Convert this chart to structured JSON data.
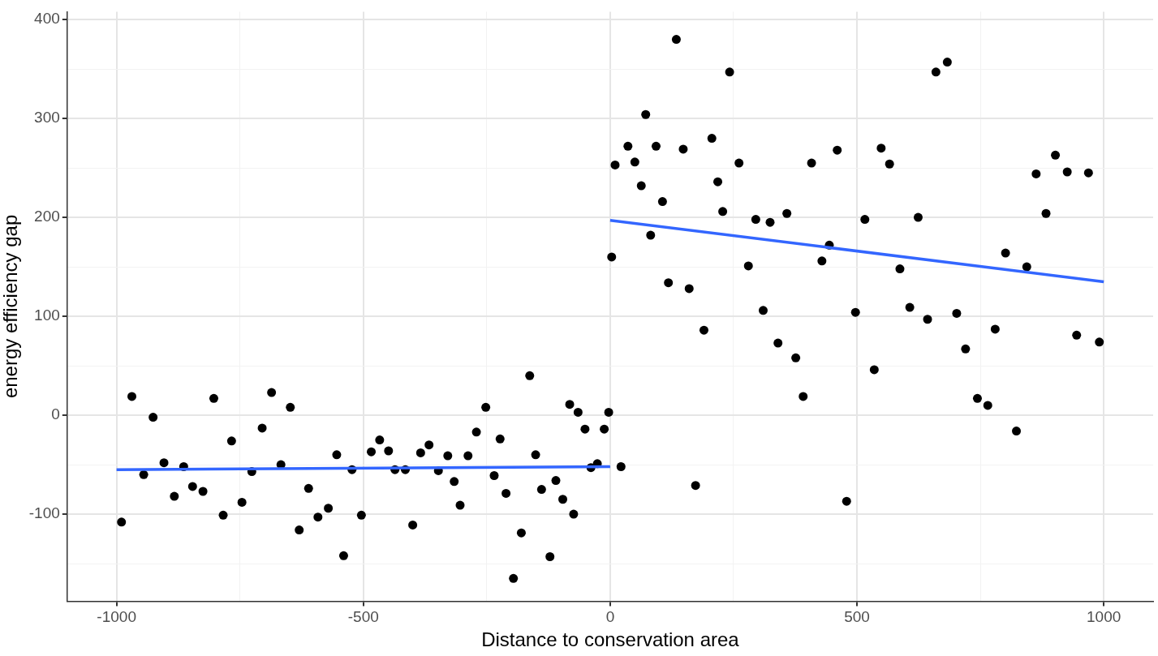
{
  "chart_data": {
    "type": "scatter",
    "xlabel": "Distance to conservation area",
    "ylabel": "energy efficiency gap",
    "xlim": [
      -1100,
      1100
    ],
    "ylim": [
      -188,
      408
    ],
    "xticks": [
      -1000,
      {
        "value": -750,
        "label": null
      },
      -500,
      {
        "value": -250,
        "label": null
      },
      0,
      {
        "value": 250,
        "label": null
      },
      500,
      {
        "value": 750,
        "label": null
      },
      1000
    ],
    "yticks": [
      {
        "value": -150,
        "label": null
      },
      -100,
      {
        "value": -50,
        "label": null
      },
      0,
      {
        "value": 50,
        "label": null
      },
      100,
      {
        "value": 150,
        "label": null
      },
      200,
      {
        "value": 250,
        "label": null
      },
      300,
      {
        "value": 350,
        "label": null
      },
      400
    ],
    "grid": true,
    "marker": "circle",
    "legend": false,
    "series": [
      {
        "color": "#000000",
        "x": [
          -990,
          -969,
          -945,
          -926,
          -904,
          -883,
          -864,
          -846,
          -825,
          -803,
          -784,
          -767,
          -746,
          -726,
          -705,
          -686,
          -667,
          -648,
          -630,
          -611,
          -592,
          -571,
          -554,
          -540,
          -523,
          -504,
          -484,
          -467,
          -449,
          -436,
          -415,
          -400,
          -384,
          -367,
          -348,
          -329,
          -316,
          -304,
          -288,
          -271,
          -252,
          -235,
          -223,
          -211,
          -196,
          -180,
          -163,
          -151,
          -139,
          -122,
          -110,
          -96,
          -82,
          -74,
          -65,
          -51,
          -39,
          -26,
          -12,
          -3,
          3,
          10,
          22,
          36,
          50,
          63,
          72,
          82,
          93,
          106,
          118,
          134,
          148,
          160,
          173,
          190,
          206,
          218,
          228,
          242,
          261,
          280,
          295,
          310,
          324,
          340,
          358,
          376,
          391,
          408,
          429,
          444,
          460,
          479,
          497,
          516,
          535,
          549,
          566,
          587,
          607,
          624,
          643,
          660,
          683,
          702,
          720,
          744,
          765,
          780,
          801,
          823,
          844,
          863,
          883,
          902,
          926,
          945,
          969,
          991
        ],
        "values": [
          -108,
          19,
          -60,
          -2,
          -48,
          -82,
          -52,
          -72,
          -77,
          17,
          -101,
          -26,
          -88,
          -57,
          -13,
          23,
          -50,
          8,
          -116,
          -74,
          -103,
          -94,
          -40,
          -142,
          -55,
          -101,
          -37,
          -25,
          -36,
          -55,
          -55,
          -111,
          -38,
          -30,
          -56,
          -41,
          -67,
          -91,
          -41,
          -17,
          8,
          -61,
          -24,
          -79,
          -165,
          -119,
          40,
          -40,
          -75,
          -143,
          -66,
          -85,
          11,
          -100,
          3,
          -14,
          -53,
          -49,
          -14,
          3,
          160,
          253,
          -52,
          272,
          256,
          232,
          304,
          182,
          272,
          216,
          134,
          380,
          269,
          128,
          -71,
          86,
          280,
          236,
          206,
          347,
          255,
          151,
          198,
          106,
          195,
          73,
          204,
          58,
          19,
          255,
          156,
          172,
          268,
          -87,
          104,
          198,
          46,
          270,
          254,
          148,
          109,
          200,
          97,
          347,
          357,
          103,
          67,
          17,
          10,
          87,
          164,
          -16,
          150,
          244,
          204,
          263,
          246,
          81,
          245,
          74
        ]
      },
      {
        "type": "line",
        "color": "#3366ff",
        "marker": "none",
        "x": [
          -1000,
          0
        ],
        "values": [
          -55,
          -52
        ]
      },
      {
        "type": "line",
        "color": "#3366ff",
        "marker": "none",
        "x": [
          0,
          1000
        ],
        "values": [
          197,
          135
        ]
      }
    ]
  }
}
